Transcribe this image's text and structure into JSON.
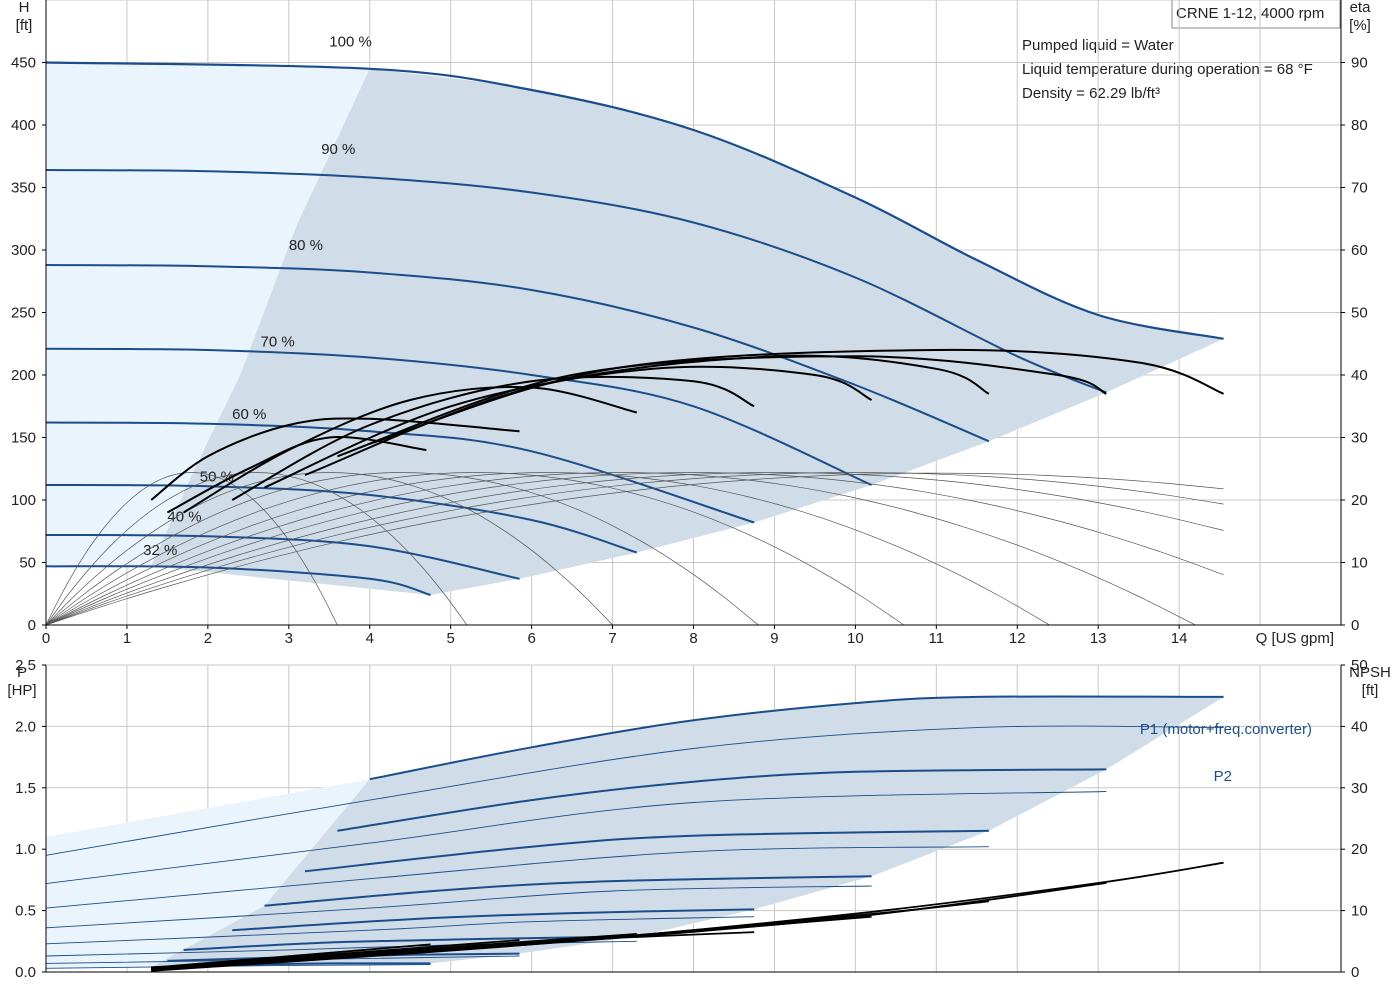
{
  "chart_title": "CRNE 1-12, 4000 rpm",
  "info_lines": [
    "Pumped liquid = Water",
    "Liquid temperature during operation = 68 °F",
    "Density = 62.29 lb/ft³"
  ],
  "colors": {
    "curve_blue": "#1a4d8a",
    "range_fill": "#d0dce8",
    "light_fill": "#eaf4fc",
    "grid": "#c8c8c8",
    "eta": "#000000"
  },
  "chart_data": [
    {
      "type": "line",
      "panel": "head",
      "xlabel": "Q [US gpm]",
      "ylabel": "H\n[ft]",
      "y2label": "eta\n[%]",
      "xlim": [
        0,
        16
      ],
      "ylim": [
        0,
        500
      ],
      "y2lim": [
        0,
        100
      ],
      "xticks": [
        0,
        1,
        2,
        3,
        4,
        5,
        6,
        7,
        8,
        9,
        10,
        11,
        12,
        13,
        14
      ],
      "yticks": [
        0,
        50,
        100,
        150,
        200,
        250,
        300,
        350,
        400,
        450
      ],
      "y2ticks": [
        0,
        10,
        20,
        30,
        40,
        50,
        60,
        70,
        80,
        90
      ],
      "grid": true,
      "head_curves": [
        {
          "speed": "100 %",
          "label_x": 3.5,
          "label_y": 463,
          "x": [
            0,
            4,
            6,
            8,
            10,
            11.5,
            13,
            14.55
          ],
          "y": [
            450,
            445,
            428,
            396,
            342,
            292,
            248,
            229
          ]
        },
        {
          "speed": "90 %",
          "label_x": 3.4,
          "label_y": 377,
          "x": [
            0,
            2,
            4,
            6,
            8,
            10,
            12,
            13.1
          ],
          "y": [
            364,
            363,
            358,
            346,
            322,
            278,
            215,
            186
          ]
        },
        {
          "speed": "80 %",
          "label_x": 3.0,
          "label_y": 300,
          "x": [
            0,
            2,
            4,
            6,
            8,
            10,
            11.65
          ],
          "y": [
            288,
            287,
            282,
            268,
            238,
            192,
            147
          ]
        },
        {
          "speed": "70 %",
          "label_x": 2.65,
          "label_y": 223,
          "x": [
            0,
            2,
            4,
            6,
            8,
            10.2
          ],
          "y": [
            221,
            220,
            214,
            200,
            175,
            112
          ]
        },
        {
          "speed": "60 %",
          "label_x": 2.3,
          "label_y": 165,
          "x": [
            0,
            2,
            4,
            6,
            8.75
          ],
          "y": [
            162,
            161,
            155,
            139,
            82
          ]
        },
        {
          "speed": "50 %",
          "label_x": 1.9,
          "label_y": 115,
          "x": [
            0,
            2,
            4,
            6,
            7.3
          ],
          "y": [
            112,
            111,
            104,
            84,
            58
          ]
        },
        {
          "speed": "40 %",
          "label_x": 1.5,
          "label_y": 83,
          "x": [
            0,
            2,
            4,
            5.85
          ],
          "y": [
            72,
            71,
            63,
            37
          ]
        },
        {
          "speed": "32 %",
          "label_x": 1.2,
          "label_y": 56,
          "x": [
            0,
            2,
            4,
            4.75
          ],
          "y": [
            47,
            46,
            37,
            24
          ]
        }
      ],
      "eta_curves_pct": [
        {
          "x": [
            1.3,
            2,
            3,
            4,
            5.85
          ],
          "y": [
            20,
            27,
            32,
            33,
            31
          ]
        },
        {
          "x": [
            1.5,
            2.5,
            3.5,
            4.7
          ],
          "y": [
            18,
            25,
            30,
            28
          ]
        },
        {
          "x": [
            1.7,
            3,
            4.5,
            6,
            7.3
          ],
          "y": [
            18,
            28,
            36,
            38,
            34
          ]
        },
        {
          "x": [
            2.3,
            4,
            6,
            8,
            8.75
          ],
          "y": [
            20,
            32,
            39,
            39,
            35
          ]
        },
        {
          "x": [
            2.7,
            5,
            7.5,
            9.5,
            10.2
          ],
          "y": [
            22,
            35,
            41,
            40,
            36
          ]
        },
        {
          "x": [
            3.2,
            6,
            9,
            11,
            11.65
          ],
          "y": [
            24,
            38,
            43,
            41,
            37
          ]
        },
        {
          "x": [
            3.6,
            6.5,
            10,
            12.5,
            13.1
          ],
          "y": [
            27,
            40,
            43,
            40,
            37
          ]
        },
        {
          "x": [
            4,
            7,
            11,
            13.5,
            14.55
          ],
          "y": [
            29,
            41,
            44,
            42,
            37
          ]
        }
      ]
    },
    {
      "type": "line",
      "panel": "power",
      "ylabel": "P\n[HP]",
      "y2label": "NPSH\n[ft]",
      "xlim": [
        0,
        16
      ],
      "ylim": [
        0,
        2.5
      ],
      "y2lim": [
        0,
        50
      ],
      "yticks": [
        0.0,
        0.5,
        1.0,
        1.5,
        2.0,
        2.5
      ],
      "y2ticks": [
        0,
        10,
        20,
        30,
        40,
        50
      ],
      "series_labels": [
        "P1 (motor+freq.converter)",
        "P2"
      ],
      "p1_curves": [
        {
          "x": [
            4,
            6,
            8,
            10,
            11.5,
            14.55
          ],
          "y": [
            1.57,
            1.83,
            2.05,
            2.19,
            2.24,
            2.24
          ]
        },
        {
          "x": [
            3.6,
            6,
            8,
            10,
            13.1
          ],
          "y": [
            1.15,
            1.4,
            1.55,
            1.63,
            1.65
          ]
        },
        {
          "x": [
            3.2,
            6,
            8,
            11.65
          ],
          "y": [
            0.82,
            1.02,
            1.11,
            1.15
          ]
        },
        {
          "x": [
            2.7,
            5,
            7,
            10.2
          ],
          "y": [
            0.54,
            0.67,
            0.74,
            0.78
          ]
        },
        {
          "x": [
            2.3,
            4.5,
            6.5,
            8.75
          ],
          "y": [
            0.34,
            0.43,
            0.48,
            0.51
          ]
        },
        {
          "x": [
            1.7,
            3.5,
            5.5,
            7.3
          ],
          "y": [
            0.18,
            0.24,
            0.27,
            0.29
          ]
        },
        {
          "x": [
            1.5,
            3,
            4.5,
            5.85
          ],
          "y": [
            0.09,
            0.12,
            0.14,
            0.15
          ]
        },
        {
          "x": [
            1.3,
            2.5,
            3.5,
            4.75
          ],
          "y": [
            0.04,
            0.06,
            0.07,
            0.07
          ]
        }
      ],
      "p2_curves": [
        {
          "x": [
            0,
            4,
            8,
            11.5,
            14.55
          ],
          "y": [
            0.95,
            1.4,
            1.82,
            1.99,
            1.99
          ]
        },
        {
          "x": [
            0,
            4,
            8,
            13.1
          ],
          "y": [
            0.72,
            1.05,
            1.38,
            1.47
          ]
        },
        {
          "x": [
            0,
            4,
            8,
            11.65
          ],
          "y": [
            0.52,
            0.76,
            0.98,
            1.02
          ]
        },
        {
          "x": [
            0,
            4,
            7,
            10.2
          ],
          "y": [
            0.36,
            0.52,
            0.66,
            0.7
          ]
        },
        {
          "x": [
            0,
            4,
            6,
            8.75
          ],
          "y": [
            0.23,
            0.34,
            0.41,
            0.45
          ]
        },
        {
          "x": [
            0,
            3,
            5,
            7.3
          ],
          "y": [
            0.13,
            0.18,
            0.22,
            0.25
          ]
        },
        {
          "x": [
            0,
            3,
            5.85
          ],
          "y": [
            0.07,
            0.1,
            0.13
          ]
        },
        {
          "x": [
            0,
            2.5,
            4.75
          ],
          "y": [
            0.03,
            0.05,
            0.06
          ]
        }
      ],
      "npsh_curves_ft": [
        {
          "x": [
            1.3,
            6,
            10,
            13,
            14.55
          ],
          "y": [
            0.2,
            4.5,
            9.5,
            14.5,
            17.8
          ]
        },
        {
          "x": [
            1.3,
            6,
            10,
            13.1
          ],
          "y": [
            0.3,
            4.5,
            9,
            14.5
          ]
        },
        {
          "x": [
            1.3,
            6,
            10,
            11.65
          ],
          "y": [
            0.3,
            4.6,
            9.2,
            11.5
          ]
        },
        {
          "x": [
            1.3,
            6,
            10.2
          ],
          "y": [
            0.4,
            4.6,
            9
          ]
        },
        {
          "x": [
            1.3,
            6,
            8.75
          ],
          "y": [
            0.4,
            4.8,
            6.5
          ]
        },
        {
          "x": [
            1.3,
            6,
            7.3
          ],
          "y": [
            0.5,
            5.0,
            6.2
          ]
        },
        {
          "x": [
            1.3,
            5.85
          ],
          "y": [
            0.6,
            5.2
          ]
        },
        {
          "x": [
            1.3,
            4.75
          ],
          "y": [
            0.7,
            4.5
          ]
        }
      ]
    }
  ]
}
